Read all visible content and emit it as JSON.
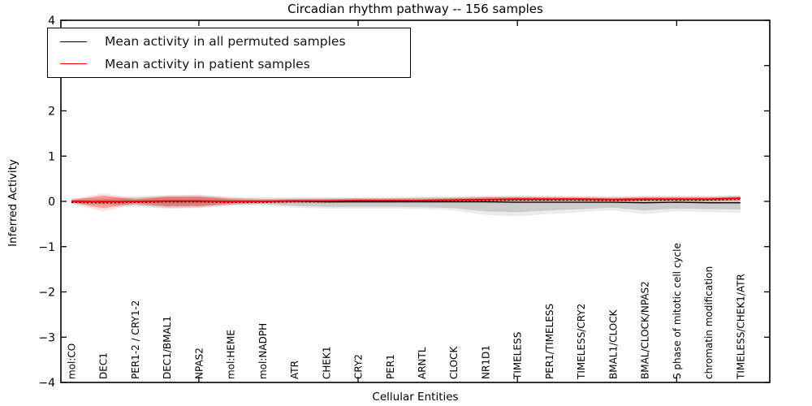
{
  "chart_data": {
    "type": "line",
    "title": "Circadian rhythm pathway -- 156 samples",
    "xlabel": "Cellular Entities",
    "ylabel": "Inferred Activity",
    "ylim": [
      -4,
      4
    ],
    "ytick_values": [
      4,
      3,
      2,
      1,
      0,
      -1,
      -2,
      -3,
      -4
    ],
    "ytick_labels": [
      "4",
      "3",
      "2",
      "1",
      "0",
      "−1",
      "−2",
      "−3",
      "−4"
    ],
    "xtick_indices": [
      4,
      9,
      14,
      19
    ],
    "grid": false,
    "legend_position": "upper-left",
    "categories": [
      "mol:CO",
      "DEC1",
      "PER1-2 / CRY1-2",
      "DEC1/BMAL1",
      "NPAS2",
      "mol:HEME",
      "mol:NADPH",
      "ATR",
      "CHEK1",
      "CRY2",
      "PER1",
      "ARNTL",
      "CLOCK",
      "NR1D1",
      "TIMELESS",
      "PER1/TIMELESS",
      "TIMELESS/CRY2",
      "BMAL1/CLOCK",
      "BMAL/CLOCK/NPAS2",
      "S phase of mitotic cell cycle",
      "chromatin modification",
      "TIMELESS/CHEK1/ATR"
    ],
    "series": [
      {
        "name": "Mean activity in all permuted samples",
        "color": "#000000",
        "style": "solid",
        "width": 1.3,
        "values": [
          0,
          0,
          0,
          0,
          0,
          0,
          0,
          0,
          -0.01,
          -0.01,
          -0.01,
          -0.01,
          -0.01,
          -0.01,
          -0.02,
          -0.02,
          -0.02,
          -0.02,
          -0.03,
          -0.02,
          -0.03,
          -0.03
        ]
      },
      {
        "name": "Mean activity in patient samples",
        "color": "#ff0000",
        "style": "solid",
        "width": 1.8,
        "values": [
          0,
          -0.01,
          0,
          0.01,
          0.01,
          0,
          0,
          0.01,
          0.01,
          0.02,
          0.02,
          0.02,
          0.03,
          0.04,
          0.05,
          0.05,
          0.05,
          0.04,
          0.05,
          0.05,
          0.05,
          0.07
        ]
      }
    ],
    "dotted_overlay": {
      "name": "permuted mean dotted trace",
      "color": "#000000",
      "style": "dotted",
      "values": [
        -0.02,
        -0.03,
        -0.02,
        -0.01,
        -0.01,
        -0.02,
        -0.02,
        -0.01,
        -0.01,
        0,
        0,
        0,
        0.01,
        0.02,
        0.03,
        0.03,
        0.03,
        0.02,
        0.03,
        0.03,
        0.03,
        0.05
      ]
    },
    "bands": [
      {
        "name": "permuted range outer",
        "color": "rgba(0,0,0,0.08)",
        "top": [
          0.06,
          0.08,
          0.12,
          0.13,
          0.15,
          0.1,
          0.09,
          0.09,
          0.09,
          0.09,
          0.1,
          0.1,
          0.11,
          0.12,
          0.12,
          0.12,
          0.11,
          0.1,
          0.12,
          0.12,
          0.12,
          0.13
        ],
        "bottom": [
          -0.06,
          -0.08,
          -0.12,
          -0.16,
          -0.15,
          -0.1,
          -0.09,
          -0.14,
          -0.16,
          -0.16,
          -0.16,
          -0.17,
          -0.2,
          -0.3,
          -0.33,
          -0.28,
          -0.24,
          -0.2,
          -0.28,
          -0.22,
          -0.24,
          -0.25
        ]
      },
      {
        "name": "permuted range inner",
        "color": "rgba(0,0,0,0.13)",
        "top": [
          0.04,
          0.05,
          0.08,
          0.1,
          0.11,
          0.07,
          0.06,
          0.06,
          0.07,
          0.07,
          0.07,
          0.08,
          0.08,
          0.09,
          0.09,
          0.09,
          0.08,
          0.08,
          0.09,
          0.09,
          0.09,
          0.1
        ],
        "bottom": [
          -0.04,
          -0.05,
          -0.08,
          -0.12,
          -0.11,
          -0.07,
          -0.06,
          -0.1,
          -0.12,
          -0.12,
          -0.12,
          -0.13,
          -0.15,
          -0.22,
          -0.24,
          -0.2,
          -0.17,
          -0.14,
          -0.2,
          -0.16,
          -0.17,
          -0.18
        ]
      },
      {
        "name": "patient range outer",
        "color": "rgba(255,0,0,0.12)",
        "top": [
          0.05,
          0.18,
          0.07,
          0.14,
          0.14,
          0.08,
          0.05,
          0.06,
          0.06,
          0.07,
          0.07,
          0.08,
          0.09,
          0.11,
          0.12,
          0.11,
          0.11,
          0.1,
          0.11,
          0.11,
          0.11,
          0.13
        ],
        "bottom": [
          -0.05,
          -0.22,
          -0.07,
          -0.15,
          -0.14,
          -0.08,
          -0.05,
          -0.04,
          -0.04,
          -0.03,
          -0.03,
          -0.03,
          -0.02,
          -0.02,
          -0.01,
          -0.01,
          -0.01,
          -0.01,
          -0.01,
          -0.01,
          -0.01,
          0.01
        ]
      },
      {
        "name": "patient range inner",
        "color": "rgba(255,0,0,0.30)",
        "top": [
          0.03,
          0.13,
          0.04,
          0.1,
          0.1,
          0.05,
          0.03,
          0.04,
          0.04,
          0.05,
          0.05,
          0.05,
          0.06,
          0.08,
          0.09,
          0.08,
          0.08,
          0.07,
          0.08,
          0.08,
          0.08,
          0.1
        ],
        "bottom": [
          -0.03,
          -0.15,
          -0.04,
          -0.1,
          -0.1,
          -0.05,
          -0.03,
          -0.02,
          -0.02,
          -0.01,
          -0.01,
          -0.01,
          0.0,
          0.0,
          0.01,
          0.01,
          0.01,
          0.01,
          0.01,
          0.01,
          0.01,
          0.03
        ]
      }
    ],
    "legend": {
      "entries": [
        {
          "label": "Mean activity in all permuted samples",
          "color": "#000000"
        },
        {
          "label": "Mean activity in patient samples",
          "color": "#ff0000"
        }
      ]
    },
    "colors": {
      "axis": "#000000",
      "background": "#ffffff",
      "tick_label": "#000000"
    }
  }
}
